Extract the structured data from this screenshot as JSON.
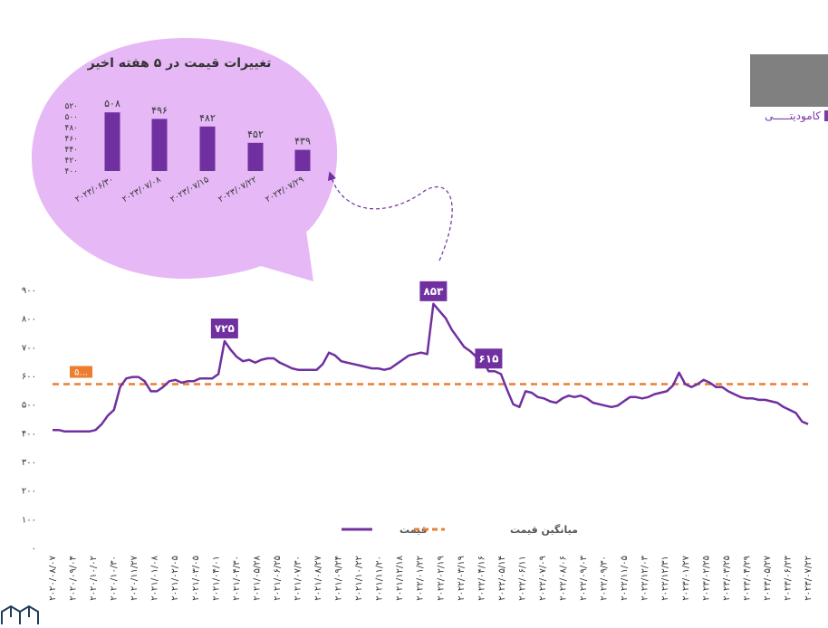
{
  "header": {
    "box_color": "#808080",
    "label": "کامودیتـــــی",
    "accent": "#7a3aa8"
  },
  "colors": {
    "price_line": "#7030a0",
    "average_line": "#ed7d31",
    "bubble": "#e6b8f5",
    "bar": "#7030a0",
    "callout_bg": "#7030a0",
    "avg_callout_bg": "#ed7d31"
  },
  "chart_data": [
    {
      "type": "line",
      "title": "",
      "xlabel": "",
      "ylabel": "",
      "ylim": [
        0,
        900
      ],
      "yticks": [
        "۰",
        "۱۰۰",
        "۲۰۰",
        "۳۰۰",
        "۴۰۰",
        "۵۰۰",
        "۶۰۰",
        "۷۰۰",
        "۸۰۰",
        "۹۰۰"
      ],
      "grid": false,
      "legend": "bottom-center",
      "x_tick_labels": [
        "۲۰۲۰/۰۸/۰۷",
        "۲۰۲۰/۰۹/۰۴",
        "۲۰۲۰/۱۰/۰۲",
        "۲۰۲۰/۱۰/۳۰",
        "۲۰۲۰/۱۱/۲۷",
        "۲۰۲۱/۰۱/۰۸",
        "۲۰۲۱/۰۲/۰۵",
        "۲۰۲۱/۰۳/۰۵",
        "۲۰۲۱/۰۴/۰۱",
        "۲۰۲۱/۰۴/۳۰",
        "۲۰۲۱/۰۵/۲۸",
        "۲۰۲۱/۰۶/۲۵",
        "۲۰۲۱/۰۷/۳۰",
        "۲۰۲۱/۰۸/۲۷",
        "۲۰۲۱/۰۹/۲۴",
        "۲۰۲۱/۱۰/۲۲",
        "۲۰۲۱/۱۱/۲۰",
        "۲۰۲۱/۱۲/۱۸",
        "۲۰۲۲/۰۱/۲۲",
        "۲۰۲۲/۰۲/۱۹",
        "۲۰۲۲/۰۳/۱۹",
        "۲۰۲۲/۰۴/۱۶",
        "۲۰۲۲/۰۵/۱۴",
        "۲۰۲۲/۰۶/۱۱",
        "۲۰۲۲/۰۷/۰۹",
        "۲۰۲۲/۰۸/۰۶",
        "۲۰۲۲/۰۹/۰۳",
        "۲۰۲۲/۰۹/۳۰",
        "۲۰۲۲/۱۱/۰۵",
        "۲۰۲۲/۱۲/۰۳",
        "۲۰۲۲/۱۲/۳۱",
        "۲۰۲۳/۰۱/۲۷",
        "۲۰۲۳/۰۲/۲۵",
        "۲۰۲۳/۰۳/۲۵",
        "۲۰۲۳/۰۴/۲۹",
        "۲۰۲۳/۰۵/۲۷",
        "۲۰۲۳/۰۶/۲۳",
        "۲۰۲۳/۰۷/۲۲"
      ],
      "series": [
        {
          "name": "قیمت",
          "values": [
            410,
            410,
            405,
            405,
            405,
            405,
            405,
            410,
            430,
            460,
            480,
            560,
            590,
            595,
            595,
            580,
            545,
            545,
            560,
            580,
            585,
            575,
            580,
            580,
            590,
            590,
            590,
            605,
            720,
            690,
            665,
            650,
            655,
            645,
            655,
            660,
            660,
            645,
            635,
            625,
            620,
            620,
            620,
            620,
            640,
            680,
            670,
            650,
            645,
            640,
            635,
            630,
            625,
            625,
            620,
            625,
            640,
            655,
            670,
            675,
            680,
            675,
            850,
            825,
            800,
            760,
            730,
            700,
            685,
            665,
            655,
            615,
            615,
            605,
            550,
            500,
            490,
            545,
            540,
            525,
            520,
            510,
            505,
            520,
            530,
            525,
            530,
            520,
            505,
            500,
            495,
            490,
            495,
            510,
            525,
            525,
            520,
            525,
            535,
            540,
            545,
            565,
            610,
            570,
            560,
            570,
            585,
            575,
            560,
            560,
            545,
            535,
            525,
            520,
            520,
            515,
            515,
            510,
            505,
            490,
            480,
            470,
            440,
            430
          ],
          "peaks": [
            {
              "label": "۷۲۵",
              "value": 725
            },
            {
              "label": "۸۵۳",
              "value": 853
            },
            {
              "label": "۶۱۵",
              "value": 615
            }
          ]
        },
        {
          "name": "میانگین قیمت",
          "value": 570,
          "label": "۵..."
        }
      ]
    },
    {
      "type": "bar",
      "title": "تغییرات قیمت در ۵ هفته اخیر",
      "xlabel": "",
      "ylabel": "",
      "ylim": [
        400,
        520
      ],
      "yticks": [
        "۴۰۰",
        "۴۲۰",
        "۴۴۰",
        "۴۶۰",
        "۴۸۰",
        "۵۰۰",
        "۵۲۰"
      ],
      "categories": [
        "۲۰۲۳/۰۶/۳۰",
        "۲۰۲۳/۰۷/۰۸",
        "۲۰۲۳/۰۷/۱۵",
        "۲۰۲۳/۰۷/۲۲",
        "۲۰۲۳/۰۷/۲۹"
      ],
      "values": [
        508,
        496,
        482,
        452,
        439
      ],
      "data_labels": [
        "۵۰۸",
        "۴۹۶",
        "۴۸۲",
        "۴۵۲",
        "۴۳۹"
      ]
    }
  ]
}
